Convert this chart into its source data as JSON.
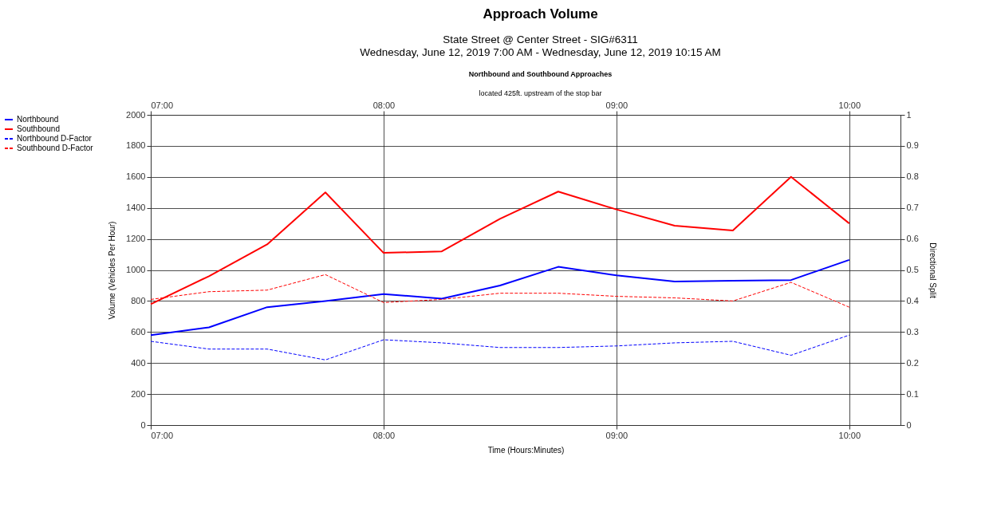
{
  "chart_data": {
    "type": "line",
    "title": "Approach Volume",
    "subtitle": "State Street @ Center Street - SIG#6311\nWednesday, June 12, 2019 7:00 AM - Wednesday, June 12, 2019 10:15 AM",
    "annotations": [
      "Northbound and Southbound Approaches",
      "located 425ft. upstream of the stop bar"
    ],
    "xlabel": "Time (Hours:Minutes)",
    "ylabel": "Volume (Vehicles Per Hour)",
    "y2label": "Directional Split",
    "x": [
      7,
      7.25,
      7.5,
      7.75,
      8,
      8.25,
      8.5,
      8.75,
      9,
      9.25,
      9.5,
      9.75,
      10
    ],
    "series": [
      {
        "name": "Northbound",
        "color": "#0000ff",
        "line_style": "solid",
        "values": [
          580,
          630,
          760,
          800,
          845,
          815,
          900,
          1020,
          965,
          925,
          930,
          935,
          1065
        ]
      },
      {
        "name": "Southbound",
        "color": "#ff0000",
        "line_style": "solid",
        "values": [
          780,
          960,
          1165,
          1500,
          1110,
          1120,
          1330,
          1505,
          1390,
          1285,
          1255,
          1600,
          1300
        ]
      },
      {
        "name": "Northbound D-Factor",
        "color": "#0000ff",
        "axis": "y2",
        "line_style": "dashed",
        "values": [
          0.27,
          0.245,
          0.245,
          0.21,
          0.275,
          0.265,
          0.25,
          0.25,
          0.255,
          0.265,
          0.27,
          0.225,
          0.29
        ]
      },
      {
        "name": "Southbound D-Factor",
        "color": "#ff0000",
        "axis": "y2",
        "line_style": "dashed",
        "values": [
          0.405,
          0.43,
          0.435,
          0.485,
          0.395,
          0.405,
          0.425,
          0.425,
          0.415,
          0.41,
          0.4,
          0.46,
          0.38
        ]
      }
    ],
    "xlim": [
      7,
      10.22
    ],
    "xticks": [
      {
        "value": 7,
        "label": "07:00"
      },
      {
        "value": 8,
        "label": "08:00"
      },
      {
        "value": 9,
        "label": "09:00"
      },
      {
        "value": 10,
        "label": "10:00"
      }
    ],
    "x2lim": [
      7,
      10.22
    ],
    "x2ticks": [
      {
        "value": 7,
        "label": "07:00"
      },
      {
        "value": 8,
        "label": "08:00"
      },
      {
        "value": 9,
        "label": "09:00"
      },
      {
        "value": 10,
        "label": "10:00"
      }
    ],
    "ylim": [
      0,
      2000
    ],
    "yticks": [
      0,
      200,
      400,
      600,
      800,
      1000,
      1200,
      1400,
      1600,
      1800,
      2000
    ],
    "y2lim": [
      0,
      1
    ],
    "y2ticks": [
      0,
      0.1,
      0.2,
      0.3,
      0.4,
      0.5,
      0.6,
      0.7,
      0.8,
      0.9,
      1
    ],
    "grid": true,
    "legend": "left",
    "marker": "none"
  }
}
